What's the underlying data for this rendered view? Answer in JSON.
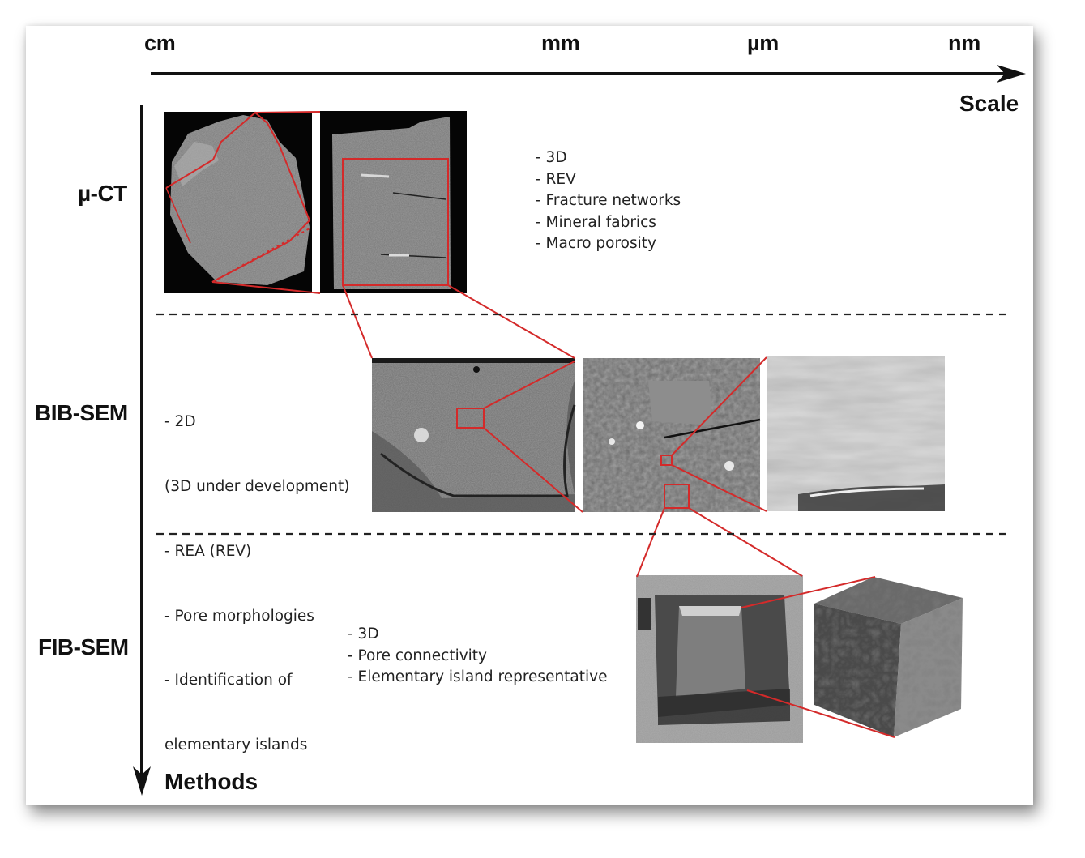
{
  "scale_axis": {
    "ticks": [
      "cm",
      "mm",
      "µm",
      "nm"
    ],
    "title": "Scale"
  },
  "methods_axis": {
    "title": "Methods"
  },
  "methods": [
    {
      "name": "µ-CT",
      "features": [
        "- 3D",
        "- REV",
        "- Fracture networks",
        "- Mineral fabrics",
        "- Macro porosity"
      ]
    },
    {
      "name": "BIB-SEM",
      "features": [
        "- 2D",
        "  (3D under development)",
        "- REA (REV)",
        "- Pore morphologies",
        "- Identification of",
        "  elementary islands"
      ]
    },
    {
      "name": "FIB-SEM",
      "features": [
        "- 3D",
        "- Pore connectivity",
        "- Elementary island representative"
      ]
    }
  ],
  "colors": {
    "axis": "#111111",
    "highlight": "#d42a2a",
    "divider": "#222222"
  }
}
